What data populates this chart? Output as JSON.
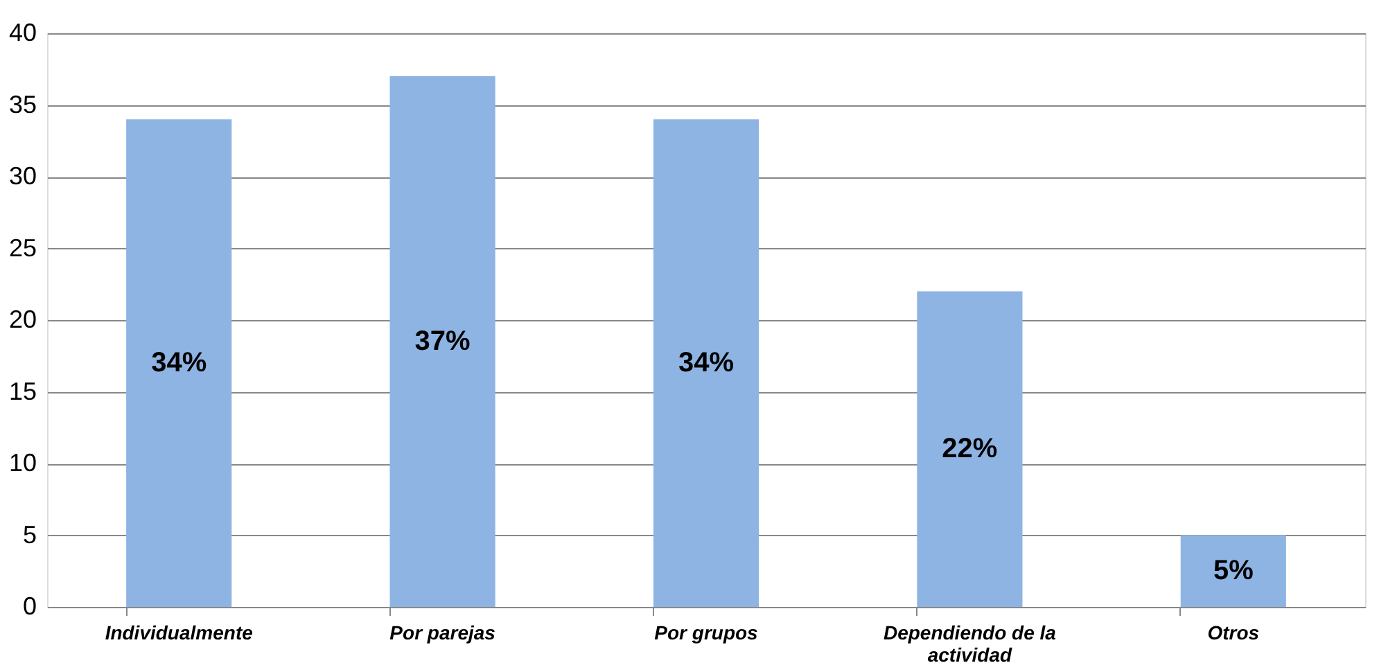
{
  "chart_data": {
    "type": "bar",
    "categories": [
      "Individualmente",
      "Por parejas",
      "Por grupos",
      "Dependiendo de la actividad",
      "Otros"
    ],
    "values": [
      34,
      37,
      34,
      22,
      5
    ],
    "value_labels": [
      "34%",
      "37%",
      "34%",
      "22%",
      "5%"
    ],
    "color": "#8eb4e3",
    "ylim": [
      0,
      40
    ],
    "yticks": [
      0,
      5,
      10,
      15,
      20,
      25,
      30,
      35,
      40
    ],
    "grid": "y"
  }
}
